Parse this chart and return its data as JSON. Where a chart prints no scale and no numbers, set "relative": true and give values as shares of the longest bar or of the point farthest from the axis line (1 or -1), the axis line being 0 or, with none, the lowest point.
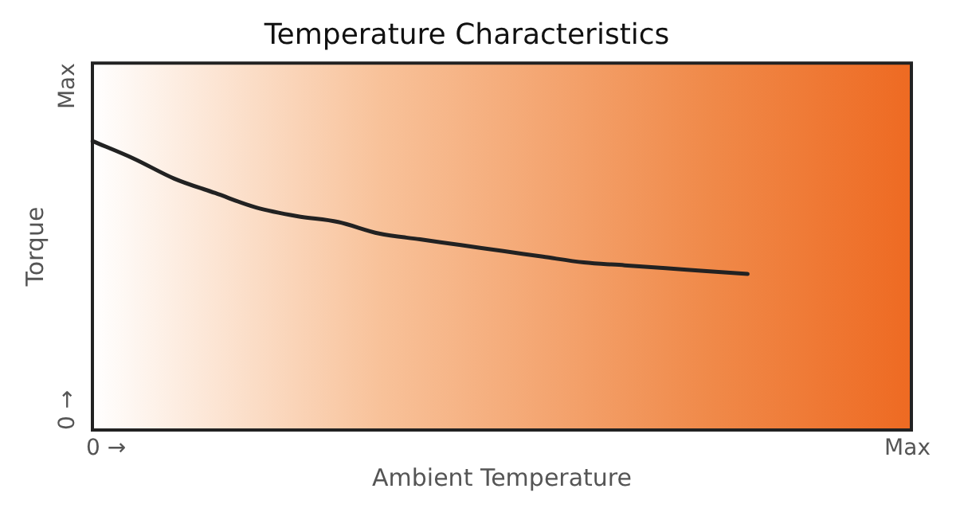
{
  "chart_data": {
    "type": "line",
    "title": "Temperature Characteristics",
    "xlabel": "Ambient Temperature",
    "ylabel": "Torque",
    "relative": true,
    "annotations": [
      "0 →",
      "Max",
      "0 →",
      "Max"
    ],
    "categories": [
      null,
      null,
      null,
      null,
      null,
      null,
      null,
      null,
      null,
      null,
      null,
      null,
      null,
      null,
      null,
      null,
      null,
      null,
      null,
      null,
      null
    ],
    "series": [
      {
        "color": "#222222",
        "values": [
          1,
          0.94,
          0.87,
          0.82,
          0.77,
          0.74,
          0.72,
          0.68,
          0.66,
          0.64,
          0.62,
          0.6,
          0.58,
          0.57,
          0.56,
          0.55,
          0.54,
          null,
          null,
          null,
          null
        ]
      }
    ],
    "marker": "none",
    "line_style": "solid"
  }
}
